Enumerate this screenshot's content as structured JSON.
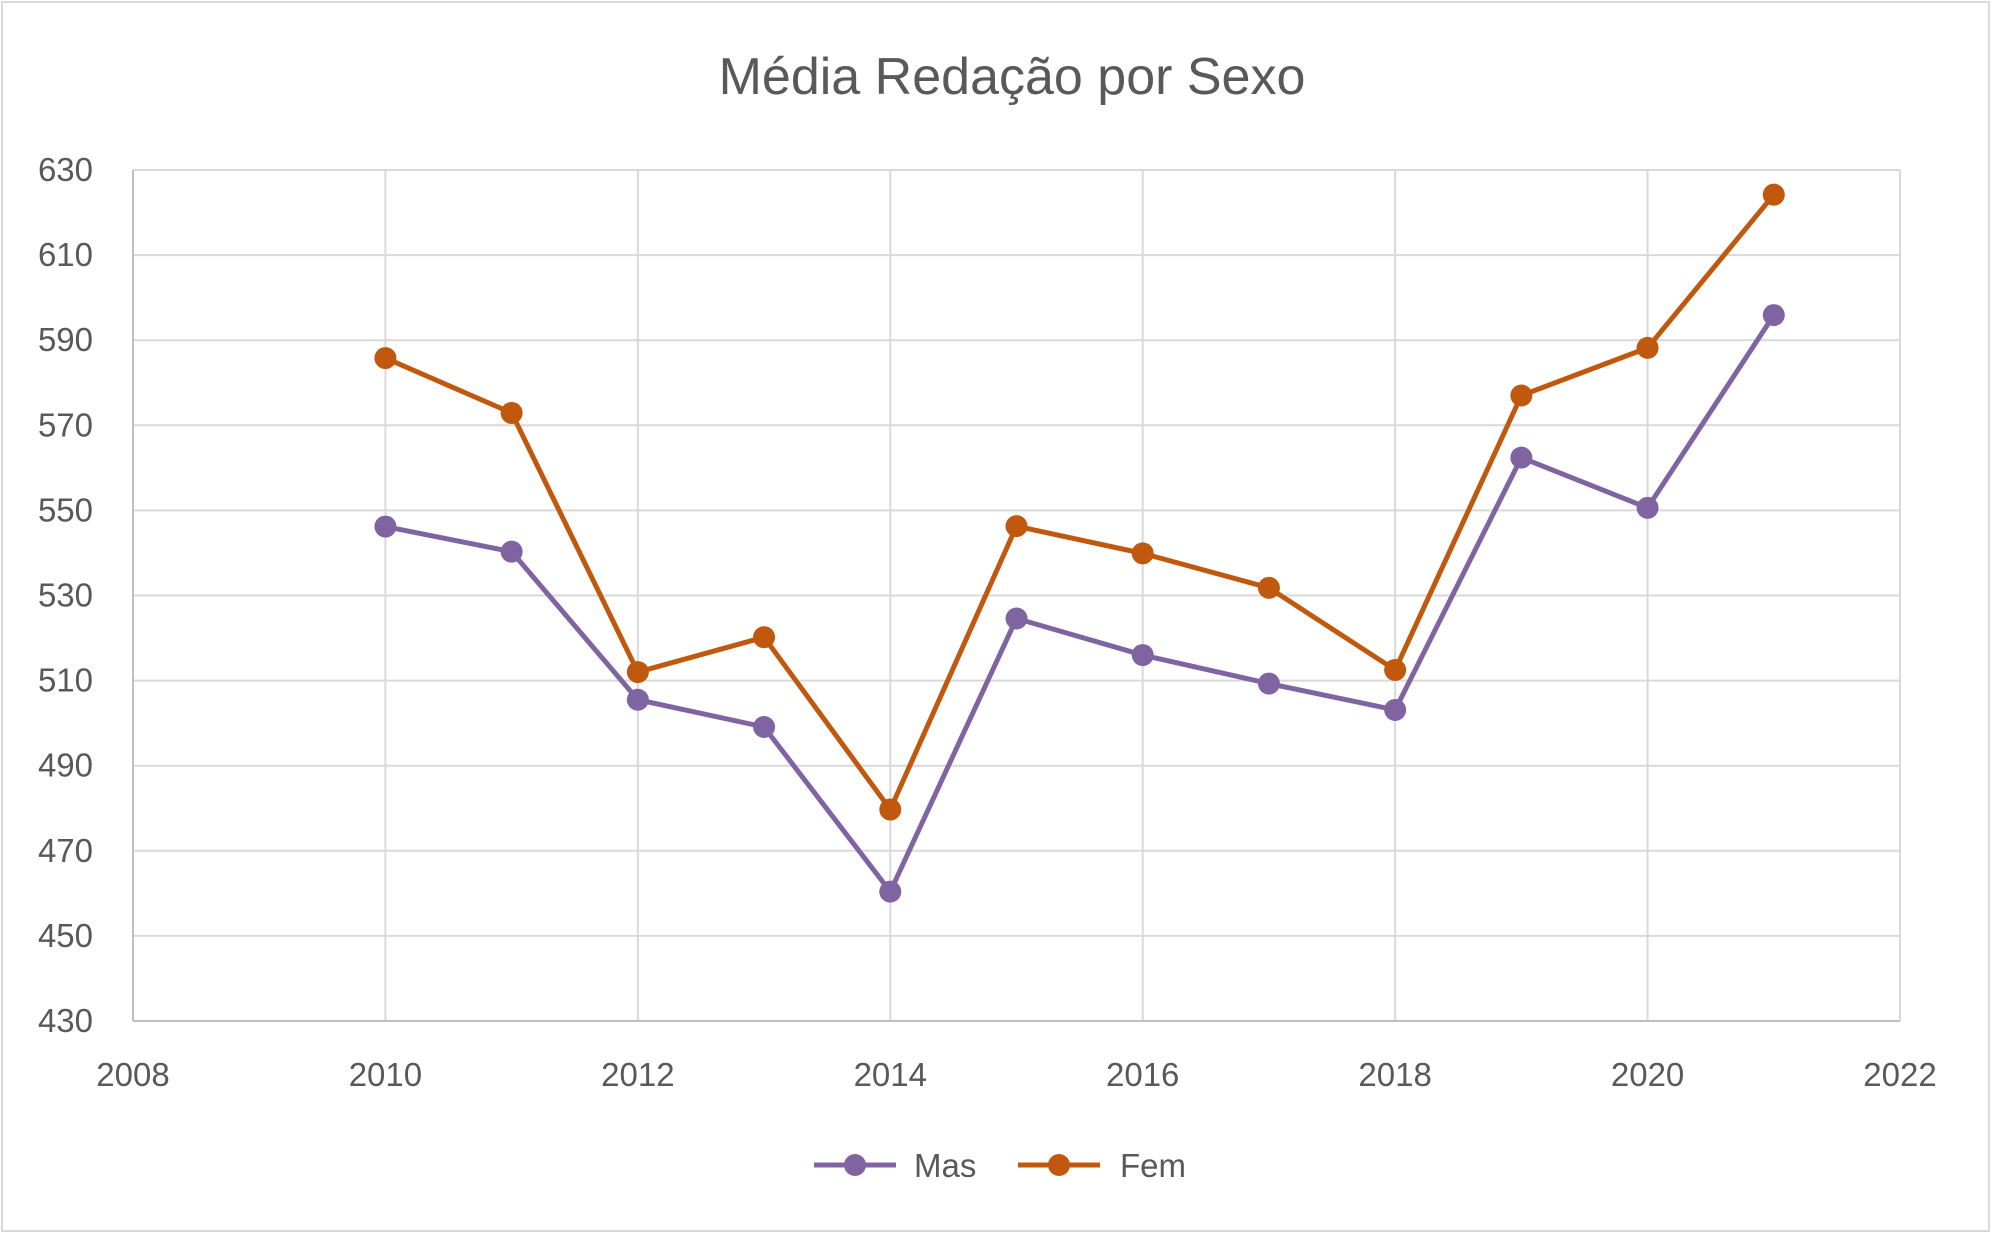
{
  "chart_data": {
    "type": "line",
    "title": "Média Redação por Sexo",
    "xlabel": "",
    "ylabel": "",
    "xlim": [
      2008,
      2022
    ],
    "ylim": [
      430,
      630
    ],
    "x_ticks": [
      2008,
      2010,
      2012,
      2014,
      2016,
      2018,
      2020,
      2022
    ],
    "y_ticks": [
      430,
      450,
      470,
      490,
      510,
      530,
      550,
      570,
      590,
      610,
      630
    ],
    "grid": true,
    "legend_position": "bottom",
    "x": [
      2010,
      2011,
      2012,
      2013,
      2014,
      2015,
      2016,
      2017,
      2018,
      2019,
      2020,
      2021
    ],
    "series": [
      {
        "name": "Mas",
        "color": "#8064a2",
        "values": [
          546.2,
          540.3,
          505.5,
          499.1,
          460.4,
          524.6,
          516.0,
          509.3,
          503.1,
          562.4,
          550.6,
          595.9
        ]
      },
      {
        "name": "Fem",
        "color": "#c0580d",
        "values": [
          585.8,
          572.9,
          512.0,
          520.2,
          479.7,
          546.3,
          539.9,
          531.8,
          512.5,
          577.0,
          588.2,
          624.2
        ]
      }
    ]
  }
}
